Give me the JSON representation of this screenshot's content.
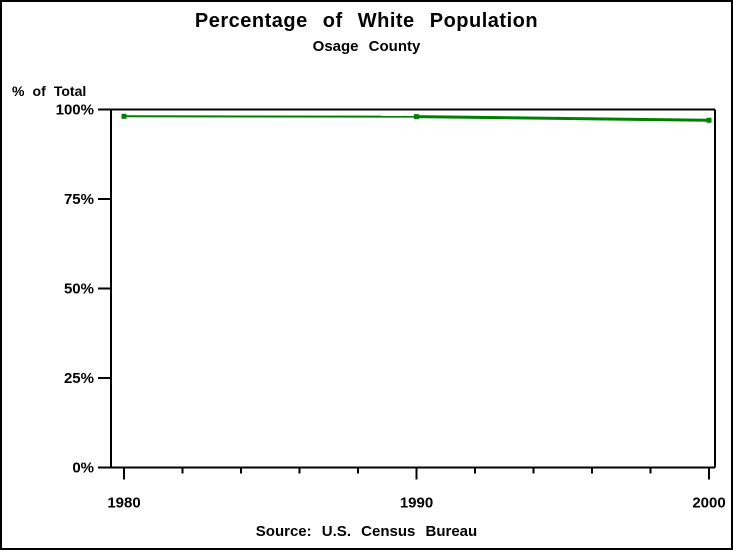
{
  "window": {
    "background_color": "#ffffff",
    "border_color": "#000000"
  },
  "chart_data": {
    "type": "line",
    "title": "Percentage of White Population",
    "subtitle": "Osage County",
    "footnote": "Source: U.S. Census Bureau",
    "ylabel": "% of Total",
    "xlim": [
      1980,
      2000
    ],
    "ylim": [
      0,
      100
    ],
    "grid": false,
    "legend": "none",
    "frame": true,
    "x": [
      1980,
      1990,
      2000
    ],
    "series": [
      {
        "name": "white-population-percent",
        "color": "#008000",
        "marker": "square",
        "values": [
          98.1,
          98.0,
          97.0
        ]
      }
    ],
    "xticks": {
      "major_values": [
        1980,
        1990,
        2000
      ],
      "labels": [
        "1980",
        "1990",
        "2000"
      ],
      "minor_interval_years": 2
    },
    "yticks": {
      "values": [
        0,
        25,
        50,
        75,
        100
      ],
      "labels": [
        "0%",
        "25%",
        "50%",
        "75%",
        "100%"
      ]
    }
  }
}
